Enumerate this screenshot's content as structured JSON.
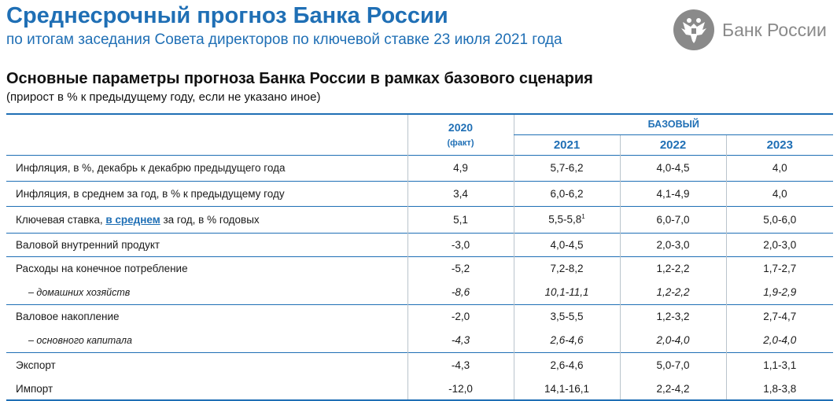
{
  "header": {
    "title": "Среднесрочный прогноз Банка России",
    "subtitle": "по итогам заседания Совета директоров по ключевой ставке 23 июля 2021 года",
    "logo_text": "Банк России"
  },
  "section": {
    "title": "Основные параметры прогноза Банка России в рамках базового сценария",
    "subtitle": "(прирост в % к предыдущему году, если не указано иное)"
  },
  "table": {
    "col_2020": "2020",
    "col_2020_note": "(факт)",
    "group_label": "БАЗОВЫЙ",
    "years": [
      "2021",
      "2022",
      "2023"
    ],
    "rows": [
      {
        "label": "Инфляция, в %, декабрь к декабрю предыдущего года",
        "v2020": "4,9",
        "v2021": "5,7-6,2",
        "v2022": "4,0-4,5",
        "v2023": "4,0"
      },
      {
        "label": "Инфляция, в среднем за год, в % к предыдущему году",
        "v2020": "3,4",
        "v2021": "6,0-6,2",
        "v2022": "4,1-4,9",
        "v2023": "4,0"
      },
      {
        "label_before": "Ключевая ставка, ",
        "label_link": "в среднем",
        "label_after": " за год, в % годовых",
        "v2020": "5,1",
        "v2021": "5,5-5,8",
        "v2021_sup": "1",
        "v2022": "6,0-7,0",
        "v2023": "5,0-6,0"
      },
      {
        "label": "Валовой внутренний продукт",
        "v2020": "-3,0",
        "v2021": "4,0-4,5",
        "v2022": "2,0-3,0",
        "v2023": "2,0-3,0"
      },
      {
        "label": "Расходы на конечное потребление",
        "v2020": "-5,2",
        "v2021": "7,2-8,2",
        "v2022": "1,2-2,2",
        "v2023": "1,7-2,7"
      },
      {
        "label": "– домашних хозяйств",
        "v2020": "-8,6",
        "v2021": "10,1-11,1",
        "v2022": "1,2-2,2",
        "v2023": "1,9-2,9"
      },
      {
        "label": "Валовое накопление",
        "v2020": "-2,0",
        "v2021": "3,5-5,5",
        "v2022": "1,2-3,2",
        "v2023": "2,7-4,7"
      },
      {
        "label": "– основного капитала",
        "v2020": "-4,3",
        "v2021": "2,6-4,6",
        "v2022": "2,0-4,0",
        "v2023": "2,0-4,0"
      },
      {
        "label": "Экспорт",
        "v2020": "-4,3",
        "v2021": "2,6-4,6",
        "v2022": "5,0-7,0",
        "v2023": "1,1-3,1"
      },
      {
        "label": "Импорт",
        "v2020": "-12,0",
        "v2021": "14,1-16,1",
        "v2022": "2,2-4,2",
        "v2023": "1,8-3,8"
      }
    ]
  },
  "icons": {
    "logo": "double-headed-eagle-icon"
  },
  "colors": {
    "accent": "#1f6fb5",
    "logo_gray": "#8a8a8a",
    "divider": "#b9c4cc"
  }
}
